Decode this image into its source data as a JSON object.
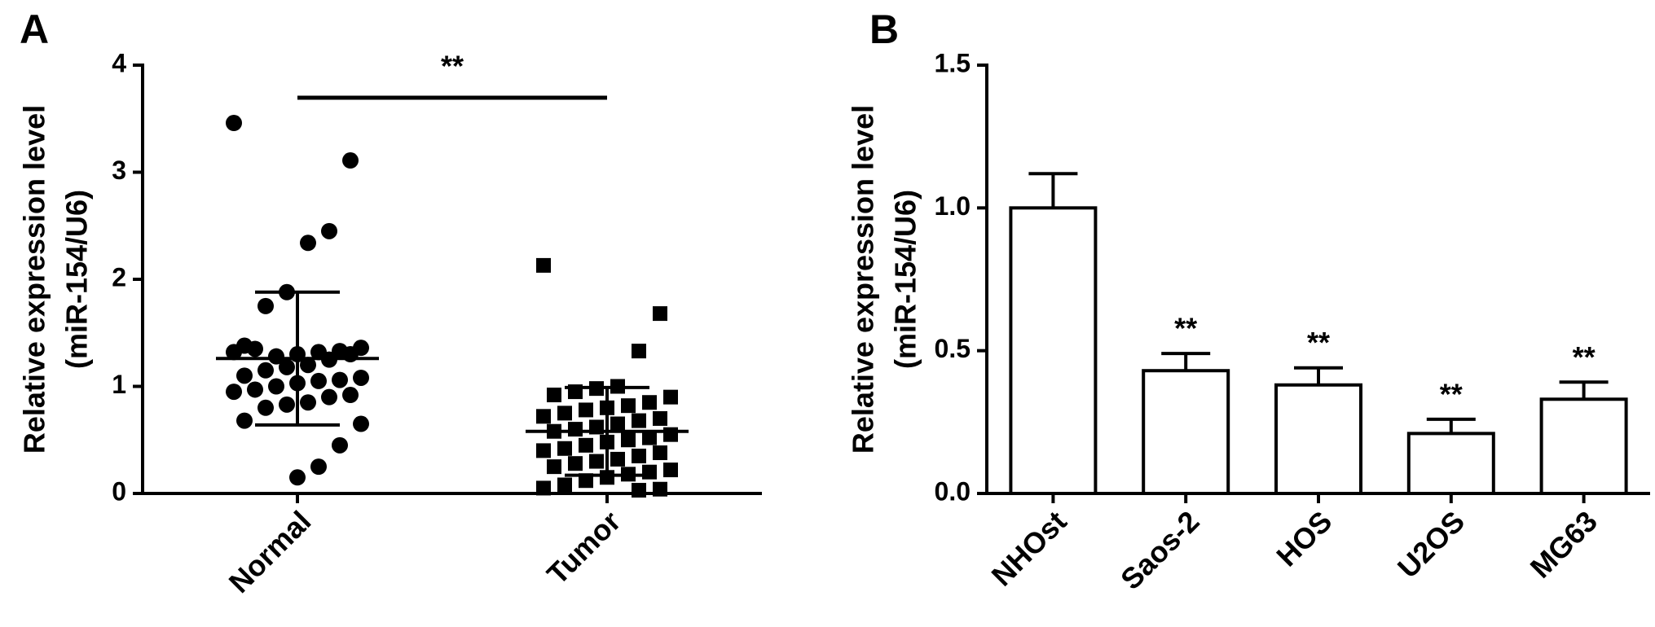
{
  "chart_data": [
    {
      "type": "strip",
      "panel_label": "A",
      "ylabel": [
        "Relative expression level",
        "(miR-154/U6)"
      ],
      "categories": [
        "Normal",
        "Tumor"
      ],
      "markers": [
        "circle",
        "square"
      ],
      "values": [
        [
          3.46,
          3.11,
          2.45,
          2.34,
          1.88,
          1.75,
          1.38,
          1.36,
          1.33,
          1.32,
          1.3,
          1.28,
          1.35,
          1.32,
          1.3,
          1.25,
          1.2,
          1.18,
          1.15,
          1.1,
          1.08,
          1.06,
          1.05,
          1.03,
          1.0,
          0.97,
          0.95,
          0.92,
          0.9,
          0.85,
          0.83,
          0.8,
          0.68,
          0.65,
          0.45,
          0.25,
          0.15
        ],
        [
          2.13,
          1.68,
          1.33,
          1.0,
          0.98,
          0.95,
          0.92,
          0.9,
          0.85,
          0.82,
          0.8,
          0.78,
          0.75,
          0.72,
          0.7,
          0.68,
          0.65,
          0.62,
          0.6,
          0.58,
          0.55,
          0.52,
          0.5,
          0.48,
          0.45,
          0.42,
          0.4,
          0.38,
          0.35,
          0.32,
          0.3,
          0.28,
          0.25,
          0.22,
          0.2,
          0.18,
          0.15,
          0.12,
          0.08,
          0.05,
          0.04,
          0.03
        ]
      ],
      "mean": [
        1.26,
        0.58
      ],
      "error": [
        0.62,
        0.41
      ],
      "annotation": "**",
      "color": "#000000",
      "ylim": [
        0,
        4
      ],
      "yticks": [
        0,
        1,
        2,
        3,
        4
      ]
    },
    {
      "type": "bar",
      "panel_label": "B",
      "ylabel": [
        "Relative expression level",
        "(miR-154/U6)"
      ],
      "categories": [
        "NHOst",
        "Saos-2",
        "HOS",
        "U2OS",
        "MG63"
      ],
      "values": [
        1.0,
        0.43,
        0.38,
        0.21,
        0.33
      ],
      "error": [
        0.12,
        0.06,
        0.06,
        0.05,
        0.06
      ],
      "annotations": [
        null,
        "**",
        "**",
        "**",
        "**"
      ],
      "color": "#000000",
      "ylim": [
        0,
        1.5
      ],
      "yticks": [
        {
          "value": 0,
          "label": "0.0"
        },
        0.5,
        {
          "value": 1,
          "label": "1.0"
        },
        1.5
      ]
    }
  ]
}
